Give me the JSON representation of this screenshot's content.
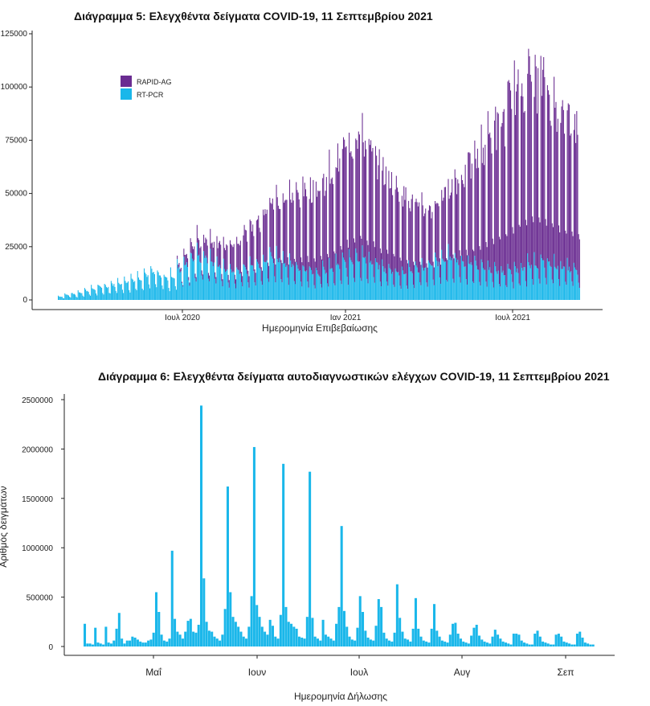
{
  "chart_data": [
    {
      "type": "bar",
      "stacked": true,
      "title": "Διάγραμμα 5: Ελεγχθέντα δείγματα COVID-19, 11 Σεπτεμβρίου 2021",
      "xlabel": "Ημερομηνία Επιβεβαίωσης",
      "ylabel": "",
      "ylim": [
        0,
        125000
      ],
      "yticks": [
        0,
        25000,
        50000,
        75000,
        100000,
        125000
      ],
      "xticks": [
        "Ιουλ 2020",
        "Ιαν 2021",
        "Ιουλ 2021"
      ],
      "legend_position": "top-left",
      "grid": false,
      "series": [
        {
          "name": "RAPID-AG",
          "color": "#6a2c91"
        },
        {
          "name": "RT-PCR",
          "color": "#1ab7ea"
        }
      ],
      "weekly_summary": {
        "weeks_from": "2020-03",
        "weeks_to": "2021-09",
        "rt_pcr_weekly_peak": [
          2000,
          3000,
          3500,
          4500,
          5500,
          6500,
          7500,
          8000,
          9000,
          10000,
          11000,
          12000,
          13000,
          15000,
          16000,
          14000,
          13000,
          14000,
          18000,
          21000,
          24000,
          25000,
          24000,
          22000,
          20000,
          18000,
          17000,
          17000,
          18000,
          20000,
          21000,
          23000,
          25000,
          24000,
          22000,
          20000,
          19000,
          18000,
          17000,
          16000,
          17000,
          18000,
          20000,
          22000,
          24000,
          25000,
          24000,
          22000,
          20000,
          18000,
          17000,
          16000,
          16000,
          17000,
          18000,
          19000,
          20000,
          22000,
          23000,
          24000,
          23000,
          22000,
          21000,
          20000,
          19000,
          18000,
          17000,
          16000,
          17000,
          18000,
          19000,
          20000,
          21000,
          22000,
          21000,
          20000,
          19000,
          18000,
          17000
        ],
        "rapid_ag_weekly_peak": [
          0,
          0,
          0,
          0,
          0,
          0,
          0,
          0,
          0,
          0,
          0,
          0,
          0,
          0,
          0,
          0,
          0,
          0,
          2000,
          5000,
          7000,
          8000,
          9000,
          10000,
          11000,
          12000,
          14000,
          16000,
          18000,
          20000,
          22000,
          25000,
          28000,
          30000,
          32000,
          35000,
          38000,
          40000,
          42000,
          44000,
          46000,
          50000,
          54000,
          58000,
          62000,
          66000,
          60000,
          56000,
          52000,
          50000,
          48000,
          44000,
          40000,
          36000,
          32000,
          30000,
          28000,
          30000,
          34000,
          38000,
          42000,
          46000,
          50000,
          56000,
          62000,
          68000,
          74000,
          80000,
          86000,
          92000,
          96000,
          98000,
          96000,
          92000,
          88000,
          84000,
          80000,
          78000,
          76000
        ]
      }
    },
    {
      "type": "bar",
      "title": "Διάγραμμα 6: Ελεγχθέντα δείγματα αυτοδιαγνωστικών ελέγχων COVID-19, 11 Σεπτεμβρίου 2021",
      "xlabel": "Ημερομηνία Δήλωσης",
      "ylabel": "Αριθμός δειγμάτων",
      "ylim": [
        0,
        2500000
      ],
      "yticks": [
        0,
        500000,
        1000000,
        1500000,
        2000000,
        2500000
      ],
      "xticks": [
        "Μαΐ",
        "Ιουν",
        "Ιουλ",
        "Αυγ",
        "Σεπ"
      ],
      "color": "#1ab7ea",
      "grid": false,
      "x_start": "2021-04-11",
      "values": [
        230000,
        30000,
        30000,
        20000,
        190000,
        40000,
        30000,
        20000,
        200000,
        40000,
        30000,
        60000,
        180000,
        340000,
        80000,
        30000,
        60000,
        60000,
        100000,
        90000,
        70000,
        50000,
        40000,
        40000,
        60000,
        70000,
        140000,
        550000,
        350000,
        120000,
        60000,
        50000,
        80000,
        970000,
        280000,
        150000,
        120000,
        80000,
        150000,
        260000,
        280000,
        150000,
        140000,
        220000,
        2440000,
        690000,
        250000,
        160000,
        150000,
        100000,
        80000,
        60000,
        120000,
        380000,
        1620000,
        550000,
        300000,
        250000,
        200000,
        150000,
        100000,
        80000,
        200000,
        510000,
        2020000,
        420000,
        300000,
        200000,
        150000,
        120000,
        270000,
        210000,
        100000,
        80000,
        320000,
        1850000,
        400000,
        250000,
        230000,
        200000,
        180000,
        100000,
        90000,
        80000,
        300000,
        1770000,
        290000,
        100000,
        80000,
        60000,
        270000,
        120000,
        100000,
        80000,
        60000,
        230000,
        400000,
        1220000,
        360000,
        200000,
        100000,
        70000,
        60000,
        190000,
        510000,
        350000,
        160000,
        90000,
        70000,
        60000,
        210000,
        480000,
        400000,
        140000,
        80000,
        60000,
        50000,
        140000,
        630000,
        290000,
        150000,
        80000,
        70000,
        50000,
        180000,
        490000,
        180000,
        100000,
        60000,
        50000,
        40000,
        180000,
        430000,
        160000,
        100000,
        60000,
        50000,
        40000,
        120000,
        230000,
        240000,
        130000,
        80000,
        50000,
        40000,
        30000,
        110000,
        190000,
        220000,
        110000,
        70000,
        50000,
        40000,
        30000,
        100000,
        170000,
        120000,
        80000,
        50000,
        40000,
        30000,
        20000,
        130000,
        130000,
        120000,
        60000,
        40000,
        30000,
        20000,
        20000,
        130000,
        160000,
        100000,
        50000,
        40000,
        30000,
        20000,
        20000,
        120000,
        130000,
        100000,
        50000,
        40000,
        30000,
        20000,
        20000,
        130000,
        150000,
        90000,
        40000,
        30000,
        20000,
        20000
      ]
    }
  ]
}
